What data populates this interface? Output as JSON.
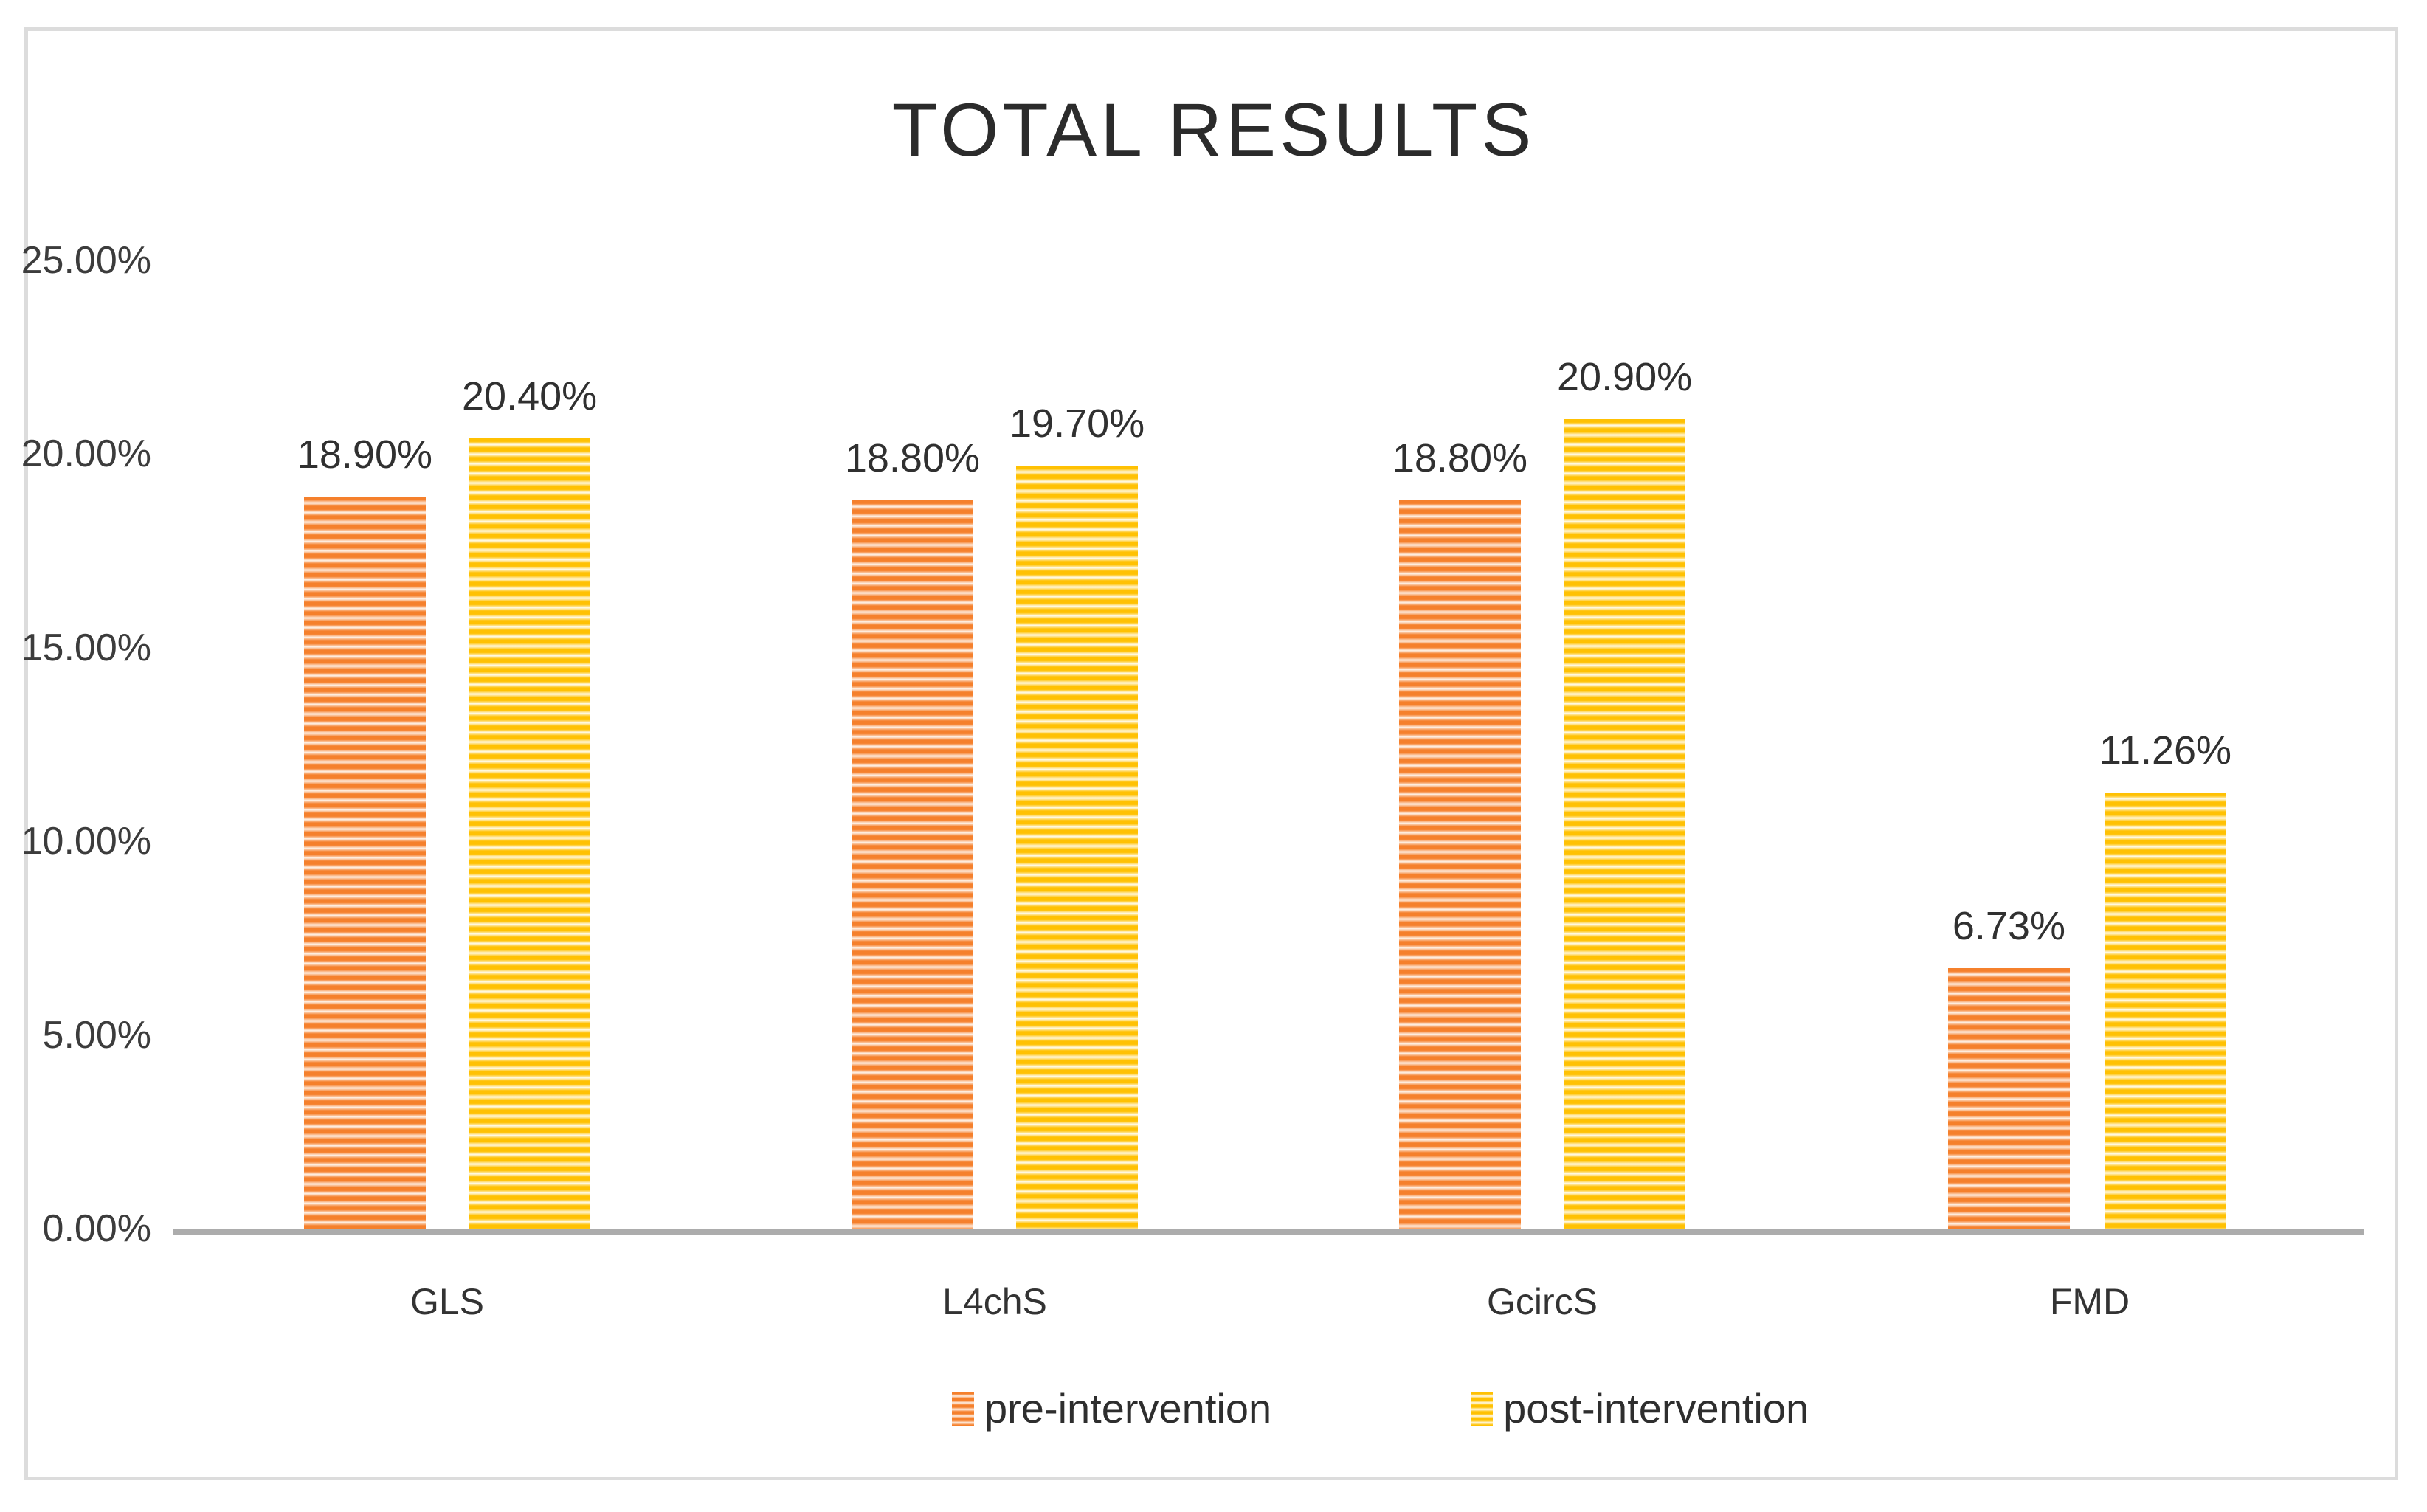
{
  "chart_data": {
    "type": "bar",
    "title": "TOTAL RESULTS",
    "categories": [
      "GLS",
      "L4chS",
      "GcircS",
      "FMD"
    ],
    "series": [
      {
        "name": "pre-intervention",
        "color": "#F5802C",
        "stripe_light": "#FEF2E8",
        "values": [
          18.9,
          18.8,
          18.8,
          6.73
        ],
        "labels": [
          "18.90%",
          "18.80%",
          "18.80%",
          "6.73%"
        ]
      },
      {
        "name": "post-intervention",
        "color": "#FFC103",
        "stripe_light": "#FFFBEC",
        "values": [
          20.4,
          19.7,
          20.9,
          11.26
        ],
        "labels": [
          "20.40%",
          "19.70%",
          "20.90%",
          "11.26%"
        ]
      }
    ],
    "y_axis": {
      "min": 0,
      "max": 25,
      "tick_step": 5,
      "tick_labels": [
        "0.00%",
        "5.00%",
        "10.00%",
        "15.00%",
        "20.00%",
        "25.00%"
      ]
    },
    "pattern": "horizontal-stripes",
    "grid": false,
    "legend_position": "bottom",
    "axis_line_color": "#ACACAC",
    "border_color": "#DCDCDC"
  }
}
